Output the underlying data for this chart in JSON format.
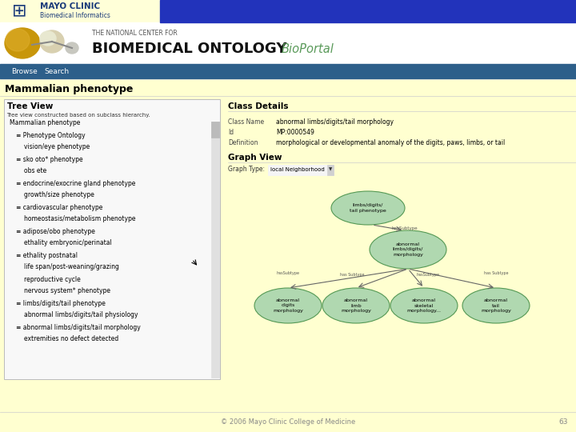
{
  "bg_color": "#ffffd0",
  "header_bar_color": "#2233bb",
  "nav_bar_color": "#2d5f8a",
  "mayo_text_line1": "MAYO CLINIC",
  "mayo_text_line2": "Biomedical Informatics",
  "ncbo_small_text": "THE NATIONAL CENTER FOR",
  "ncbo_large_text": "BIOMEDICAL ONTOLOGY",
  "bioportal_text": "BioPortal",
  "nav_items": [
    "Browse",
    "Search"
  ],
  "page_title": "Mammalian phenotype",
  "left_panel_title": "Tree View",
  "left_panel_subtitle": "Tree view constructed based on subclass hierarchy.",
  "tree_items": [
    {
      "text": "Mammalian phenotype",
      "indent": 1
    },
    {
      "text": "≡ Phenotype Ontology",
      "indent": 2
    },
    {
      "text": "vision/eye phenotype",
      "indent": 3
    },
    {
      "text": "≡ sko oto* phenotype",
      "indent": 2
    },
    {
      "text": "obs ete",
      "indent": 3
    },
    {
      "text": "≡ endocrine/exocrine gland phenotype",
      "indent": 2
    },
    {
      "text": "growth/size phenotype",
      "indent": 3
    },
    {
      "text": "≡ cardiovascular phenotype",
      "indent": 2
    },
    {
      "text": "homeostasis/metabolism phenotype",
      "indent": 3
    },
    {
      "text": "≡ adipose/obo phenotype",
      "indent": 2
    },
    {
      "text": "ethality embryonic/perinatal",
      "indent": 3
    },
    {
      "text": "≡ ethality postnatal",
      "indent": 2
    },
    {
      "text": "life span/post-weaning/grazing",
      "indent": 3
    },
    {
      "text": "reproductive cycle",
      "indent": 3
    },
    {
      "text": "nervous system* phenotype",
      "indent": 3
    },
    {
      "text": "≡ limbs/digits/tail phenotype",
      "indent": 2
    },
    {
      "text": "abnormal limbs/digits/tail physiology",
      "indent": 3
    },
    {
      "text": "≡ abnormal limbs/digits/tail morphology",
      "indent": 2
    },
    {
      "text": "extremities no defect detected",
      "indent": 3
    }
  ],
  "right_panel_title": "Class Details",
  "class_name_label": "Class Name",
  "class_name_value": "abnormal limbs/digits/tail morphology",
  "id_label": "Id",
  "id_value": "MP:0000549",
  "definition_label": "Definition",
  "definition_value": "morphological or developmental anomaly of the digits, paws, limbs, or tail",
  "graph_view_title": "Graph View",
  "graph_type_label": "Graph Type:",
  "graph_type_value": "local Neighborhood",
  "footer_text": "© 2006 Mayo Clinic College of Medicine",
  "footer_page": "63",
  "footer_color": "#888888",
  "separator_color": "#cccccc",
  "node_color": "#b0d8b0",
  "node_edge_color": "#559955",
  "arrow_color": "#666666"
}
